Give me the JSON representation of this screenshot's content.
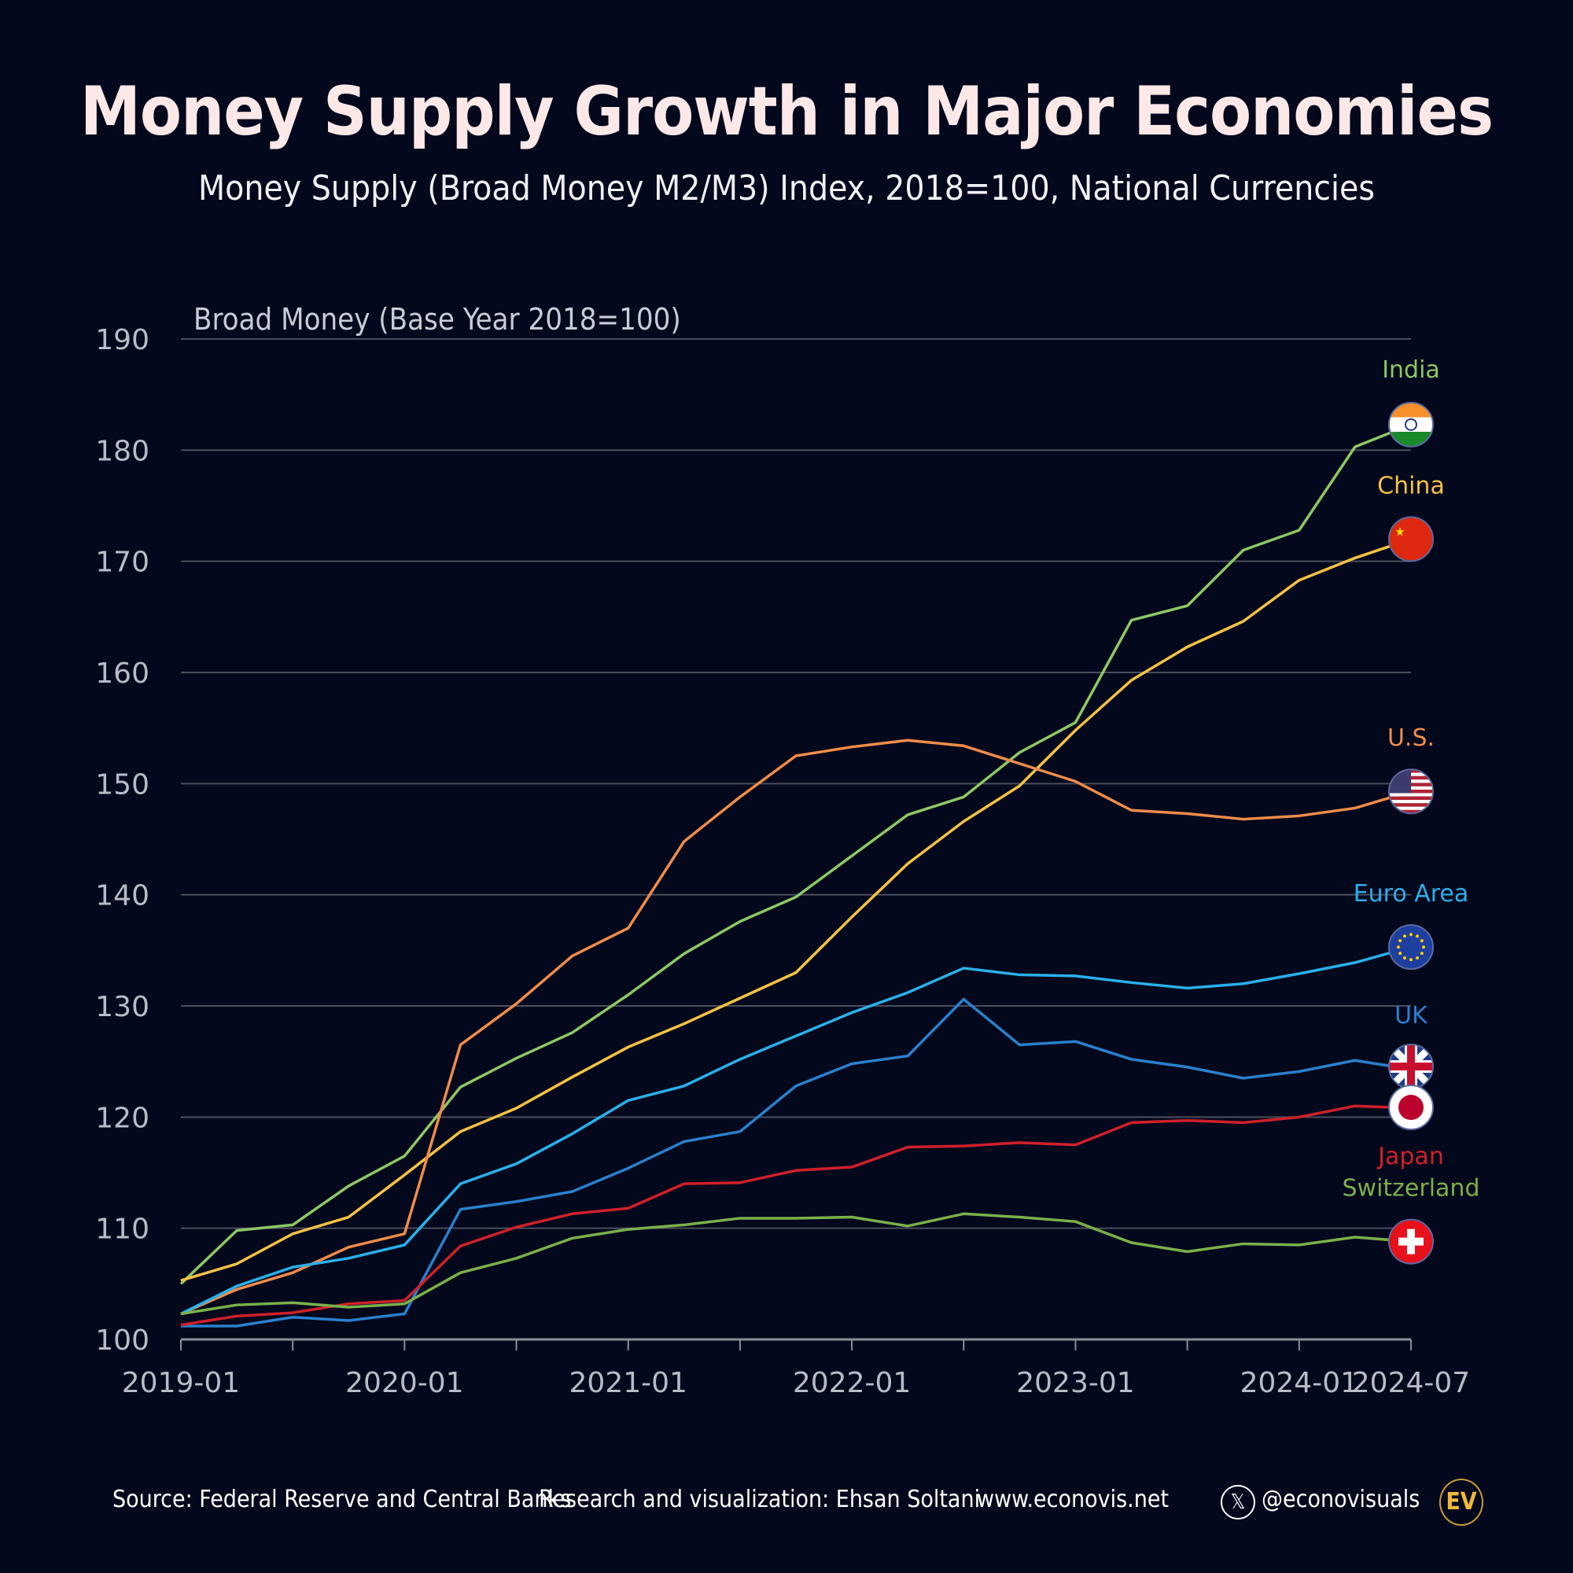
{
  "header": {
    "title": "Money Supply Growth in Major Economies",
    "subtitle": "Money Supply (Broad Money M2/M3) Index, 2018=100, National Currencies"
  },
  "footer": {
    "source": "Source: Federal Reserve and Central Banks",
    "credit": "Research and visualization: Ehsan Soltani",
    "website": "www.econovis.net",
    "x_icon": "x-logo-icon",
    "handle": "@econovisuals",
    "logo_text": "EV"
  },
  "chart_data": {
    "type": "line",
    "title": "Money Supply Growth in Major Economies",
    "subtitle": "Money Supply (Broad Money M2/M3) Index, 2018=100, National Currencies",
    "ylabel": "Broad Money (Base Year 2018=100)",
    "xlabel": "",
    "ylim": [
      100,
      190
    ],
    "yticks": [
      100,
      110,
      120,
      130,
      140,
      150,
      160,
      170,
      180,
      190
    ],
    "xtick_labels": [
      "2019-01",
      "2020-01",
      "2021-01",
      "2022-01",
      "2023-01",
      "2024-01",
      "2024-07"
    ],
    "grid": true,
    "legend": "right (inline labels with flag markers)",
    "x": [
      "2019-01",
      "2019-04",
      "2019-07",
      "2019-10",
      "2020-01",
      "2020-04",
      "2020-07",
      "2020-10",
      "2021-01",
      "2021-04",
      "2021-07",
      "2021-10",
      "2022-01",
      "2022-04",
      "2022-07",
      "2022-10",
      "2023-01",
      "2023-04",
      "2023-07",
      "2023-10",
      "2024-01",
      "2024-04",
      "2024-07"
    ],
    "series": [
      {
        "name": "India",
        "label": "India",
        "color": "#8cc865",
        "flag": "india-flag",
        "values": [
          105.0,
          109.8,
          110.3,
          113.8,
          116.5,
          122.7,
          125.3,
          127.6,
          131.0,
          134.7,
          137.6,
          139.8,
          143.5,
          147.2,
          148.8,
          152.8,
          155.5,
          164.7,
          166.0,
          171.0,
          172.8,
          180.3,
          182.3
        ]
      },
      {
        "name": "China",
        "label": "China",
        "color": "#f5c242",
        "flag": "china-flag",
        "values": [
          105.3,
          106.8,
          109.5,
          111.0,
          114.8,
          118.7,
          120.8,
          123.6,
          126.3,
          128.4,
          130.7,
          133.0,
          138.0,
          142.8,
          146.6,
          149.8,
          154.8,
          159.3,
          162.3,
          164.6,
          168.3,
          170.3,
          172.0
        ]
      },
      {
        "name": "U.S.",
        "label": "U.S.",
        "color": "#f08c4a",
        "flag": "us-flag",
        "values": [
          102.3,
          104.5,
          106.0,
          108.3,
          109.5,
          126.5,
          130.2,
          134.5,
          137.0,
          144.8,
          148.8,
          152.5,
          153.3,
          153.9,
          153.4,
          151.8,
          150.2,
          147.6,
          147.3,
          146.8,
          147.1,
          147.8,
          149.3
        ]
      },
      {
        "name": "Euro Area",
        "label": "Euro Area",
        "color": "#2ab0ea",
        "flag": "eu-flag",
        "values": [
          102.3,
          104.8,
          106.5,
          107.3,
          108.5,
          114.0,
          115.8,
          118.5,
          121.5,
          122.8,
          125.2,
          127.3,
          129.4,
          131.2,
          133.4,
          132.8,
          132.7,
          132.1,
          131.6,
          132.0,
          132.9,
          133.9,
          135.3
        ]
      },
      {
        "name": "UK",
        "label": "UK",
        "color": "#2a80cc",
        "flag": "uk-flag",
        "values": [
          101.2,
          101.2,
          102.0,
          101.7,
          102.3,
          111.7,
          112.4,
          113.3,
          115.4,
          117.8,
          118.7,
          122.8,
          124.8,
          125.5,
          130.6,
          126.5,
          126.8,
          125.2,
          124.5,
          123.5,
          124.1,
          125.1,
          124.3
        ]
      },
      {
        "name": "Japan",
        "label": "Japan",
        "color": "#d0202a",
        "flag": "japan-flag",
        "values": [
          101.3,
          102.1,
          102.4,
          103.2,
          103.5,
          108.4,
          110.1,
          111.3,
          111.8,
          114.0,
          114.1,
          115.2,
          115.5,
          117.3,
          117.4,
          117.7,
          117.5,
          119.5,
          119.7,
          119.5,
          120.0,
          121.0,
          120.8
        ]
      },
      {
        "name": "Switzerland",
        "label": "Switzerland",
        "color": "#7ab04a",
        "flag": "switzerland-flag",
        "values": [
          102.3,
          103.1,
          103.3,
          102.9,
          103.2,
          106.0,
          107.3,
          109.1,
          109.9,
          110.3,
          110.9,
          110.9,
          111.0,
          110.2,
          111.3,
          111.0,
          110.6,
          108.7,
          107.9,
          108.6,
          108.5,
          109.2,
          108.8
        ]
      }
    ]
  }
}
